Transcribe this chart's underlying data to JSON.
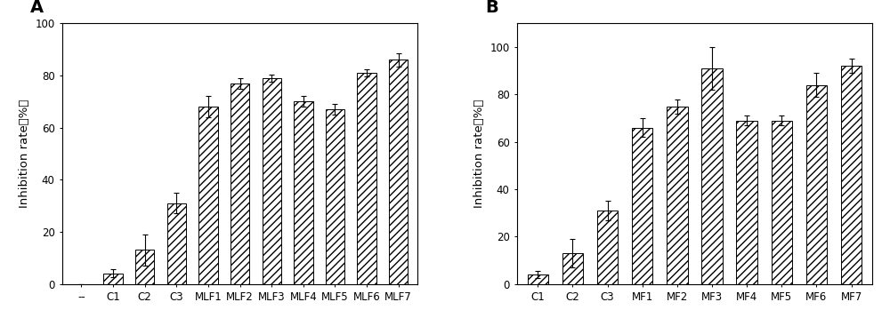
{
  "panel_A": {
    "categories": [
      "--",
      "C1",
      "C2",
      "C3",
      "MLF1",
      "MLF2",
      "MLF3",
      "MLF4",
      "MLF5",
      "MLF6",
      "MLF7"
    ],
    "values": [
      0,
      4,
      13,
      31,
      68,
      77,
      79,
      70,
      67,
      81,
      86
    ],
    "errors": [
      0,
      1.5,
      6,
      4,
      4,
      2,
      1.5,
      2,
      2,
      1.5,
      2.5
    ],
    "ylabel": "Inhibition rate（%）",
    "ylim": [
      0,
      100
    ],
    "yticks": [
      0,
      20,
      40,
      60,
      80,
      100
    ],
    "label": "A"
  },
  "panel_B": {
    "categories": [
      "C1",
      "C2",
      "C3",
      "MF1",
      "MF2",
      "MF3",
      "MF4",
      "MF5",
      "MF6",
      "MF7"
    ],
    "values": [
      4,
      13,
      31,
      66,
      75,
      91,
      69,
      69,
      84,
      92
    ],
    "errors": [
      1.5,
      6,
      4,
      4,
      3,
      9,
      2,
      2,
      5,
      3
    ],
    "ylabel": "Inhibition rate（%）",
    "ylim": [
      0,
      110
    ],
    "yticks": [
      0,
      20,
      40,
      60,
      80,
      100
    ],
    "label": "B"
  },
  "bar_facecolor": "#ffffff",
  "bar_edgecolor": "#000000",
  "hatch": "////",
  "bar_width": 0.6,
  "capsize": 2.5,
  "elinewidth": 0.8,
  "tick_fontsize": 8.5,
  "label_fontsize": 9.5,
  "panel_label_fontsize": 14,
  "fig_width": 10.0,
  "fig_height": 3.76
}
